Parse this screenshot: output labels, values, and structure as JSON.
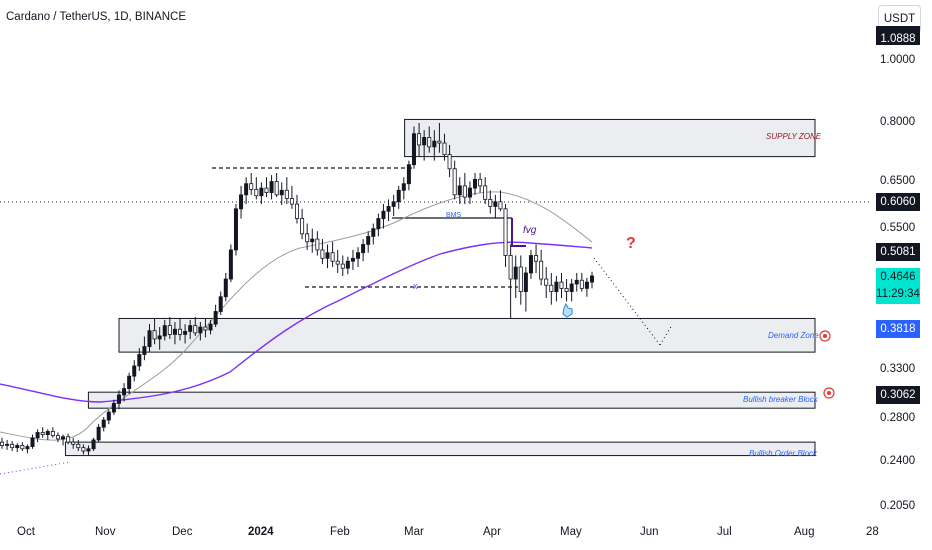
{
  "header": {
    "title": "Cardano / TetherUS, 1D, BINANCE",
    "currency": "USDT"
  },
  "chart_data": {
    "type": "candlestick",
    "title": "Cardano / TetherUS, 1D, BINANCE",
    "price_scale": "log",
    "ylim": [
      0.2,
      1.1
    ],
    "y_ticks": [
      "1.0000",
      "0.8000",
      "0.6500",
      "0.5500",
      "0.3300",
      "0.2800",
      "0.2400",
      "0.2050"
    ],
    "x_ticks": [
      "Oct",
      "Nov",
      "Dec",
      "2024",
      "Feb",
      "Mar",
      "Apr",
      "May",
      "Jun",
      "Jul",
      "Aug",
      "28"
    ],
    "price_labels": {
      "top": "1.0888",
      "horizontal_line": "0.6060",
      "ma": "0.5081",
      "last_price": "0.4646",
      "countdown": "11:29:34",
      "demand": "0.3818",
      "breaker": "0.3062"
    },
    "zones": [
      {
        "name": "SUPPLY ZONE",
        "low": 0.71,
        "high": 0.81,
        "start": "2024-03-01"
      },
      {
        "name": "Demand Zone",
        "low": 0.355,
        "high": 0.4,
        "start": "2023-11-10"
      },
      {
        "name": "Bullish breaker Block",
        "low": 0.291,
        "high": 0.308,
        "start": "2023-10-29"
      },
      {
        "name": "Bullish Order Block",
        "low": 0.246,
        "high": 0.258,
        "start": "2023-10-20"
      }
    ],
    "annotations": {
      "bms": "BMS",
      "fvg": "fvg",
      "x": "x",
      "question": "?"
    },
    "colors": {
      "up": "#131722",
      "down": "#ffffff",
      "ma_purple": "#7b2ff7",
      "ma_gray": "#9e9e9e",
      "zone_fill": "#ebedf0",
      "zone_label": "#2962ff",
      "supply_label": "#8b1a1a",
      "badge_black": "#131722",
      "badge_last": "#00e5d0",
      "badge_demand": "#2962ff",
      "question_red": "#e53935",
      "target_red": "#e53935"
    },
    "candles": [
      [
        0.258,
        0.262,
        0.252,
        0.255
      ],
      [
        0.255,
        0.26,
        0.251,
        0.256
      ],
      [
        0.256,
        0.259,
        0.25,
        0.253
      ],
      [
        0.253,
        0.257,
        0.249,
        0.255
      ],
      [
        0.255,
        0.258,
        0.25,
        0.252
      ],
      [
        0.252,
        0.256,
        0.248,
        0.254
      ],
      [
        0.254,
        0.265,
        0.252,
        0.262
      ],
      [
        0.262,
        0.27,
        0.258,
        0.267
      ],
      [
        0.267,
        0.272,
        0.262,
        0.265
      ],
      [
        0.265,
        0.27,
        0.26,
        0.268
      ],
      [
        0.268,
        0.272,
        0.262,
        0.264
      ],
      [
        0.264,
        0.267,
        0.258,
        0.261
      ],
      [
        0.261,
        0.265,
        0.255,
        0.263
      ],
      [
        0.263,
        0.266,
        0.256,
        0.258
      ],
      [
        0.258,
        0.262,
        0.252,
        0.256
      ],
      [
        0.256,
        0.26,
        0.25,
        0.253
      ],
      [
        0.253,
        0.256,
        0.247,
        0.25
      ],
      [
        0.25,
        0.255,
        0.246,
        0.252
      ],
      [
        0.252,
        0.262,
        0.25,
        0.26
      ],
      [
        0.26,
        0.275,
        0.258,
        0.272
      ],
      [
        0.272,
        0.282,
        0.268,
        0.279
      ],
      [
        0.279,
        0.29,
        0.275,
        0.287
      ],
      [
        0.287,
        0.3,
        0.284,
        0.296
      ],
      [
        0.296,
        0.31,
        0.29,
        0.305
      ],
      [
        0.305,
        0.318,
        0.298,
        0.312
      ],
      [
        0.312,
        0.33,
        0.306,
        0.326
      ],
      [
        0.326,
        0.345,
        0.32,
        0.338
      ],
      [
        0.338,
        0.36,
        0.332,
        0.352
      ],
      [
        0.352,
        0.375,
        0.345,
        0.362
      ],
      [
        0.362,
        0.392,
        0.355,
        0.383
      ],
      [
        0.383,
        0.4,
        0.365,
        0.372
      ],
      [
        0.372,
        0.388,
        0.358,
        0.376
      ],
      [
        0.376,
        0.398,
        0.37,
        0.39
      ],
      [
        0.39,
        0.402,
        0.372,
        0.378
      ],
      [
        0.378,
        0.395,
        0.365,
        0.385
      ],
      [
        0.385,
        0.4,
        0.37,
        0.378
      ],
      [
        0.378,
        0.392,
        0.366,
        0.382
      ],
      [
        0.382,
        0.398,
        0.372,
        0.39
      ],
      [
        0.39,
        0.402,
        0.376,
        0.38
      ],
      [
        0.38,
        0.395,
        0.37,
        0.388
      ],
      [
        0.388,
        0.4,
        0.374,
        0.384
      ],
      [
        0.384,
        0.398,
        0.378,
        0.392
      ],
      [
        0.392,
        0.42,
        0.388,
        0.41
      ],
      [
        0.41,
        0.44,
        0.405,
        0.432
      ],
      [
        0.432,
        0.47,
        0.425,
        0.46
      ],
      [
        0.46,
        0.52,
        0.455,
        0.51
      ],
      [
        0.51,
        0.6,
        0.5,
        0.59
      ],
      [
        0.59,
        0.64,
        0.57,
        0.62
      ],
      [
        0.62,
        0.66,
        0.6,
        0.645
      ],
      [
        0.645,
        0.67,
        0.62,
        0.632
      ],
      [
        0.632,
        0.66,
        0.61,
        0.618
      ],
      [
        0.618,
        0.648,
        0.6,
        0.635
      ],
      [
        0.635,
        0.66,
        0.615,
        0.625
      ],
      [
        0.625,
        0.665,
        0.61,
        0.65
      ],
      [
        0.65,
        0.67,
        0.615,
        0.62
      ],
      [
        0.62,
        0.648,
        0.598,
        0.63
      ],
      [
        0.63,
        0.66,
        0.6,
        0.612
      ],
      [
        0.612,
        0.64,
        0.59,
        0.6
      ],
      [
        0.6,
        0.62,
        0.56,
        0.57
      ],
      [
        0.57,
        0.59,
        0.53,
        0.54
      ],
      [
        0.54,
        0.56,
        0.51,
        0.525
      ],
      [
        0.525,
        0.55,
        0.505,
        0.53
      ],
      [
        0.53,
        0.545,
        0.5,
        0.51
      ],
      [
        0.51,
        0.53,
        0.485,
        0.495
      ],
      [
        0.495,
        0.52,
        0.478,
        0.505
      ],
      [
        0.505,
        0.525,
        0.48,
        0.49
      ],
      [
        0.49,
        0.51,
        0.47,
        0.485
      ],
      [
        0.485,
        0.5,
        0.465,
        0.478
      ],
      [
        0.478,
        0.498,
        0.468,
        0.49
      ],
      [
        0.49,
        0.51,
        0.475,
        0.495
      ],
      [
        0.495,
        0.515,
        0.48,
        0.505
      ],
      [
        0.505,
        0.53,
        0.49,
        0.52
      ],
      [
        0.52,
        0.545,
        0.505,
        0.535
      ],
      [
        0.535,
        0.56,
        0.52,
        0.55
      ],
      [
        0.55,
        0.58,
        0.535,
        0.57
      ],
      [
        0.57,
        0.6,
        0.55,
        0.585
      ],
      [
        0.585,
        0.61,
        0.565,
        0.595
      ],
      [
        0.595,
        0.62,
        0.575,
        0.605
      ],
      [
        0.605,
        0.64,
        0.59,
        0.63
      ],
      [
        0.63,
        0.66,
        0.61,
        0.645
      ],
      [
        0.645,
        0.7,
        0.63,
        0.69
      ],
      [
        0.69,
        0.79,
        0.68,
        0.77
      ],
      [
        0.77,
        0.8,
        0.71,
        0.74
      ],
      [
        0.74,
        0.78,
        0.7,
        0.76
      ],
      [
        0.76,
        0.79,
        0.72,
        0.735
      ],
      [
        0.735,
        0.78,
        0.7,
        0.75
      ],
      [
        0.75,
        0.8,
        0.72,
        0.745
      ],
      [
        0.745,
        0.77,
        0.7,
        0.715
      ],
      [
        0.715,
        0.74,
        0.66,
        0.68
      ],
      [
        0.68,
        0.7,
        0.61,
        0.62
      ],
      [
        0.62,
        0.66,
        0.6,
        0.64
      ],
      [
        0.64,
        0.67,
        0.6,
        0.615
      ],
      [
        0.615,
        0.65,
        0.6,
        0.635
      ],
      [
        0.635,
        0.67,
        0.62,
        0.655
      ],
      [
        0.655,
        0.67,
        0.625,
        0.64
      ],
      [
        0.64,
        0.66,
        0.6,
        0.61
      ],
      [
        0.61,
        0.63,
        0.58,
        0.595
      ],
      [
        0.595,
        0.62,
        0.57,
        0.605
      ],
      [
        0.605,
        0.63,
        0.585,
        0.59
      ],
      [
        0.59,
        0.6,
        0.48,
        0.5
      ],
      [
        0.5,
        0.52,
        0.4,
        0.46
      ],
      [
        0.46,
        0.5,
        0.43,
        0.48
      ],
      [
        0.48,
        0.5,
        0.42,
        0.44
      ],
      [
        0.44,
        0.48,
        0.41,
        0.47
      ],
      [
        0.47,
        0.51,
        0.46,
        0.5
      ],
      [
        0.5,
        0.52,
        0.47,
        0.49
      ],
      [
        0.49,
        0.51,
        0.45,
        0.46
      ],
      [
        0.46,
        0.48,
        0.43,
        0.45
      ],
      [
        0.45,
        0.47,
        0.42,
        0.44
      ],
      [
        0.44,
        0.465,
        0.425,
        0.455
      ],
      [
        0.455,
        0.47,
        0.43,
        0.445
      ],
      [
        0.445,
        0.46,
        0.425,
        0.44
      ],
      [
        0.44,
        0.46,
        0.425,
        0.452
      ],
      [
        0.452,
        0.47,
        0.44,
        0.458
      ],
      [
        0.458,
        0.47,
        0.44,
        0.445
      ],
      [
        0.445,
        0.462,
        0.432,
        0.455
      ],
      [
        0.455,
        0.472,
        0.445,
        0.465
      ]
    ]
  }
}
